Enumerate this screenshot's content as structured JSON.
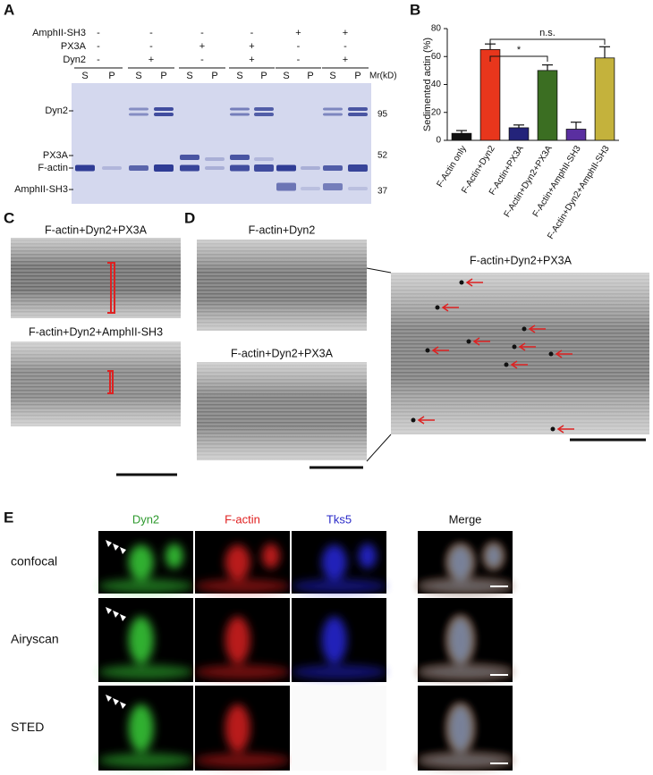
{
  "panel_labels": [
    "A",
    "B",
    "C",
    "D",
    "E"
  ],
  "gel": {
    "conditions": [
      {
        "name": "AmphII-SH3",
        "signs": [
          "-",
          "-",
          "-",
          "-",
          "+",
          "+"
        ]
      },
      {
        "name": "PX3A",
        "signs": [
          "-",
          "-",
          "+",
          "+",
          "-",
          "-"
        ]
      },
      {
        "name": "Dyn2",
        "signs": [
          "-",
          "+",
          "-",
          "+",
          "-",
          "+"
        ]
      }
    ],
    "lanes": [
      "S",
      "P",
      "S",
      "P",
      "S",
      "P",
      "S",
      "P",
      "S",
      "P",
      "S",
      "P"
    ],
    "mr_label": "Mr(kD)",
    "markers": [
      "95",
      "52",
      "37"
    ],
    "bands": [
      "Dyn2",
      "PX3A",
      "F-actin",
      "AmphII-SH3"
    ]
  },
  "chart_data": {
    "type": "bar",
    "ylabel": "Sedimented actin (%)",
    "categories": [
      "F-Actin only",
      "F-Actin+Dyn2",
      "F-Actin+PX3A",
      "F-Actin+Dyn2+PX3A",
      "F-Actin+AmphII-SH3",
      "F-Actin+Dyn2+AmphII-SH3"
    ],
    "values": [
      5,
      65,
      9,
      50,
      8,
      59
    ],
    "errors": [
      2,
      4,
      2,
      4,
      5,
      8
    ],
    "colors": [
      "#111111",
      "#e8361c",
      "#23237a",
      "#3b6e22",
      "#5a2fa0",
      "#c4b23c"
    ],
    "ylim": [
      0,
      80
    ],
    "yticks": [
      0,
      20,
      40,
      60,
      80
    ],
    "annotations": [
      "*",
      "n.s."
    ]
  },
  "em": {
    "c_titles": [
      "F-actin+Dyn2+PX3A",
      "F-actin+Dyn2+AmphII-SH3"
    ],
    "d_titles": [
      "F-actin+Dyn2",
      "F-actin+Dyn2+PX3A"
    ],
    "d_zoom_title": "F-actin+Dyn2+PX3A"
  },
  "microscopy": {
    "channels": [
      {
        "name": "Dyn2",
        "color": "#2e9a2e"
      },
      {
        "name": "F-actin",
        "color": "#e02020"
      },
      {
        "name": "Tks5",
        "color": "#2828c8"
      },
      {
        "name": "Merge",
        "color": "#111111"
      }
    ],
    "modes": [
      "confocal",
      "Airyscan",
      "STED"
    ]
  }
}
